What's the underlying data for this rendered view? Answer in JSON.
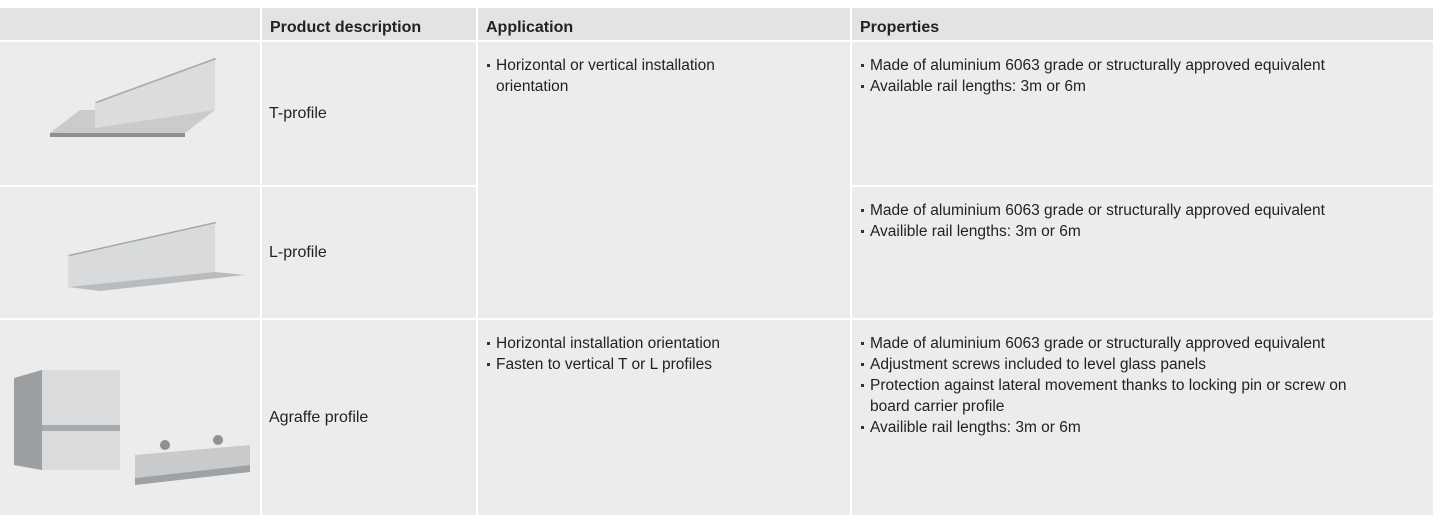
{
  "table": {
    "header": [
      "Product description",
      "Application",
      "Properties"
    ],
    "rows": [
      {
        "product": "T-profile",
        "application": [
          "Horizontal or vertical installation orientation"
        ],
        "properties": [
          "Made of aluminium 6063 grade or structurally approved equivalent",
          "Available rail lengths: 3m or 6m"
        ]
      },
      {
        "product": "L-profile",
        "properties": [
          "Made of aluminium 6063 grade or structurally approved equivalent",
          "Availible rail lengths: 3m or 6m"
        ]
      },
      {
        "product": "Agraffe profile",
        "application": [
          "Horizontal installation orientation",
          "Fasten to vertical T or L profiles"
        ],
        "properties": [
          "Made of aluminium 6063 grade or structurally approved equivalent",
          "Adjustment screws included to level glass panels",
          "Protection against lateral movement thanks to locking pin or screw on board carrier profile",
          "Availible rail lengths: 3m or 6m"
        ]
      }
    ]
  }
}
